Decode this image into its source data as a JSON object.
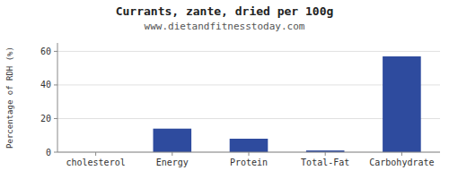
{
  "chart_data": {
    "type": "bar",
    "title": "Currants, zante, dried per 100g",
    "subtitle": "www.dietandfitnesstoday.com",
    "categories": [
      "cholesterol",
      "Energy",
      "Protein",
      "Total-Fat",
      "Carbohydrate"
    ],
    "values": [
      0,
      14,
      8,
      1,
      57
    ],
    "color": "#2e4b9e",
    "ylim": [
      0,
      65
    ],
    "yticks": [
      0,
      20,
      40,
      60
    ],
    "ylabel": "Percentage of RDH (%)",
    "grid": true
  }
}
